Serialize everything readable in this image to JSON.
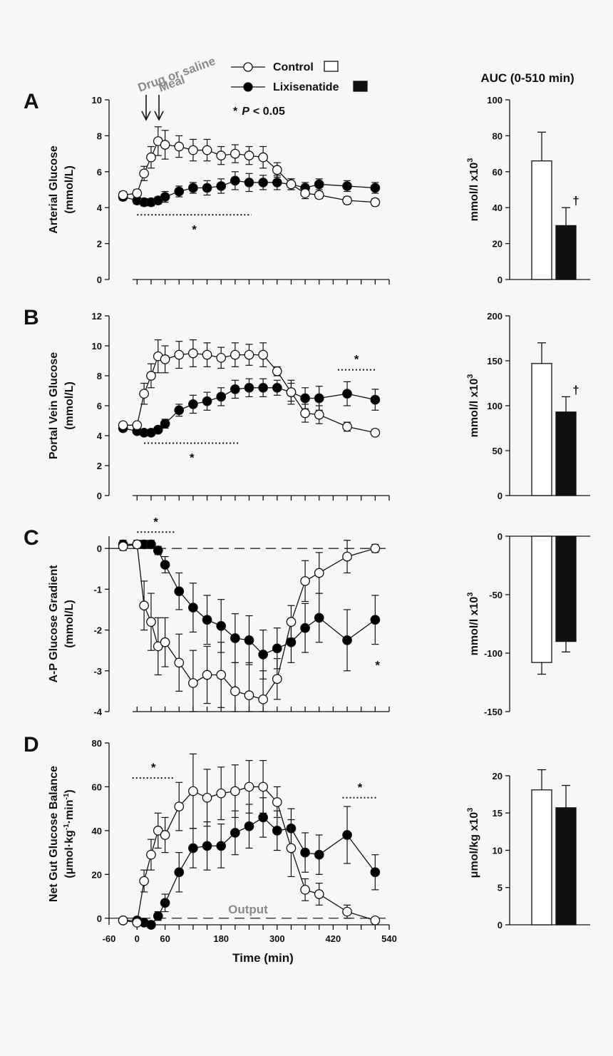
{
  "legend": {
    "control": "Control",
    "lixisenatide": "Lixisenatide",
    "star": "*",
    "p_label": "P",
    "p_value": "< 0.05"
  },
  "annotations": {
    "drug": "Drug or saline",
    "meal": "Meal"
  },
  "auc_title": "AUC (0-510 min)",
  "x_axis": {
    "label": "Time (min)",
    "ticks": [
      "-60",
      "0",
      "60",
      "180",
      "300",
      "420",
      "540"
    ],
    "tick_values": [
      -60,
      0,
      60,
      180,
      300,
      420,
      540
    ]
  },
  "chart_data": [
    {
      "panel": "A",
      "type": "line",
      "ylabel": [
        "Arterial Glucose",
        "(mmol/L)"
      ],
      "ylim": [
        0,
        10
      ],
      "yticks": [
        0,
        2,
        4,
        6,
        8,
        10
      ],
      "x": [
        -30,
        0,
        15,
        30,
        45,
        60,
        90,
        120,
        150,
        180,
        210,
        240,
        270,
        300,
        330,
        360,
        390,
        450,
        510
      ],
      "series": [
        {
          "name": "Control",
          "fill": "#ffffff",
          "values": [
            4.7,
            4.8,
            5.9,
            6.8,
            7.7,
            7.5,
            7.4,
            7.2,
            7.2,
            6.9,
            7.0,
            6.9,
            6.8,
            6.1,
            5.3,
            4.8,
            4.7,
            4.4,
            4.3
          ],
          "err": [
            0.2,
            0.2,
            0.4,
            0.6,
            0.8,
            0.8,
            0.6,
            0.6,
            0.6,
            0.5,
            0.5,
            0.5,
            0.6,
            0.4,
            0.3,
            0.3,
            0.2,
            0.2,
            0.2
          ]
        },
        {
          "name": "Lixisenatide",
          "fill": "#000000",
          "values": [
            4.6,
            4.4,
            4.3,
            4.3,
            4.4,
            4.6,
            4.9,
            5.1,
            5.1,
            5.2,
            5.5,
            5.4,
            5.4,
            5.4,
            5.3,
            5.1,
            5.3,
            5.2,
            5.1
          ],
          "err": [
            0.2,
            0.2,
            0.2,
            0.2,
            0.2,
            0.3,
            0.3,
            0.3,
            0.4,
            0.4,
            0.5,
            0.5,
            0.4,
            0.4,
            0.3,
            0.3,
            0.3,
            0.3,
            0.3
          ]
        }
      ],
      "sig": [
        {
          "x1": 0,
          "x2": 245,
          "y": 3.6,
          "label": "*",
          "label_pos": "below"
        }
      ],
      "auc": {
        "ylabel": "mmol/l x10",
        "ylabel_sup": "3",
        "ylim": [
          0,
          100
        ],
        "yticks": [
          0,
          20,
          40,
          60,
          80,
          100
        ],
        "values": [
          66,
          30
        ],
        "err": [
          16,
          10
        ],
        "marker": "†"
      }
    },
    {
      "panel": "B",
      "type": "line",
      "ylabel": [
        "Portal Vein Glucose",
        "(mmol/L)"
      ],
      "ylim": [
        0,
        12
      ],
      "yticks": [
        0,
        2,
        4,
        6,
        8,
        10,
        12
      ],
      "x": [
        -30,
        0,
        15,
        30,
        45,
        60,
        90,
        120,
        150,
        180,
        210,
        240,
        270,
        300,
        330,
        360,
        390,
        450,
        510
      ],
      "series": [
        {
          "name": "Control",
          "fill": "#ffffff",
          "values": [
            4.7,
            4.7,
            6.8,
            8.0,
            9.3,
            9.1,
            9.4,
            9.5,
            9.4,
            9.2,
            9.4,
            9.4,
            9.4,
            8.3,
            6.9,
            5.5,
            5.4,
            4.6,
            4.2
          ],
          "err": [
            0.2,
            0.2,
            0.7,
            0.8,
            1.1,
            0.9,
            0.9,
            0.9,
            0.8,
            0.7,
            0.8,
            0.7,
            0.8,
            0.3,
            0.6,
            0.6,
            0.6,
            0.3,
            0.2
          ]
        },
        {
          "name": "Lixisenatide",
          "fill": "#000000",
          "values": [
            4.5,
            4.3,
            4.2,
            4.2,
            4.4,
            4.8,
            5.7,
            6.1,
            6.3,
            6.6,
            7.1,
            7.2,
            7.2,
            7.2,
            6.9,
            6.5,
            6.5,
            6.8,
            6.4
          ],
          "err": [
            0.2,
            0.2,
            0.2,
            0.2,
            0.2,
            0.3,
            0.4,
            0.6,
            0.6,
            0.6,
            0.6,
            0.6,
            0.6,
            0.5,
            0.8,
            0.7,
            0.8,
            0.8,
            0.7
          ]
        }
      ],
      "sig": [
        {
          "x1": 15,
          "x2": 220,
          "y": 3.5,
          "label": "*",
          "label_pos": "below"
        },
        {
          "x1": 430,
          "x2": 510,
          "y": 8.4,
          "label": "*",
          "label_pos": "above"
        }
      ],
      "auc": {
        "ylabel": "mmol/l x10",
        "ylabel_sup": "3",
        "ylim": [
          0,
          200
        ],
        "yticks": [
          0,
          50,
          100,
          150,
          200
        ],
        "values": [
          147,
          93
        ],
        "err": [
          23,
          17
        ],
        "marker": "†"
      }
    },
    {
      "panel": "C",
      "type": "line",
      "ylabel": [
        "A-P Glucose Gradient",
        "(mmol/L)"
      ],
      "ylim": [
        -4,
        0.3
      ],
      "yticks": [
        -4,
        -3,
        -2,
        -1,
        0
      ],
      "zero_line": true,
      "x": [
        -30,
        0,
        15,
        30,
        45,
        60,
        90,
        120,
        150,
        180,
        210,
        240,
        270,
        300,
        330,
        360,
        390,
        450,
        510
      ],
      "series": [
        {
          "name": "Control",
          "fill": "#ffffff",
          "values": [
            0.05,
            0.1,
            -1.4,
            -1.8,
            -2.4,
            -2.3,
            -2.8,
            -3.3,
            -3.1,
            -3.1,
            -3.5,
            -3.6,
            -3.7,
            -3.2,
            -1.8,
            -0.8,
            -0.6,
            -0.2,
            0.0
          ],
          "err": [
            0.1,
            0.1,
            0.6,
            0.7,
            0.7,
            0.6,
            0.7,
            0.8,
            0.7,
            0.8,
            0.7,
            0.8,
            0.7,
            0.5,
            0.4,
            0.5,
            0.5,
            0.4,
            0.1
          ]
        },
        {
          "name": "Lixisenatide",
          "fill": "#000000",
          "values": [
            0.1,
            0.1,
            0.1,
            0.1,
            -0.05,
            -0.4,
            -1.05,
            -1.45,
            -1.75,
            -1.9,
            -2.2,
            -2.25,
            -2.6,
            -2.45,
            -2.3,
            -1.95,
            -1.7,
            -2.25,
            -1.75
          ],
          "err": [
            0.1,
            0.1,
            0.1,
            0.1,
            0.1,
            0.2,
            0.45,
            0.6,
            0.6,
            0.65,
            0.6,
            0.6,
            0.6,
            0.5,
            0.5,
            0.6,
            0.6,
            0.75,
            0.6
          ]
        }
      ],
      "sig": [
        {
          "x1": 0,
          "x2": 80,
          "y": 0.4,
          "label": "*",
          "label_pos": "above"
        }
      ],
      "extra_star": {
        "x": 515,
        "y": -2.75,
        "label": "*"
      },
      "auc": {
        "ylabel": "mmol/l x10",
        "ylabel_sup": "3",
        "ylim": [
          -150,
          0
        ],
        "yticks": [
          -150,
          -100,
          -50,
          0
        ],
        "values": [
          -108,
          -90
        ],
        "err": [
          10,
          9
        ],
        "marker": ""
      }
    },
    {
      "panel": "D",
      "type": "line",
      "ylabel": [
        "Net Gut Glucose Balance",
        "(μmol·kg-1·min-1)"
      ],
      "ylim": [
        -3,
        80
      ],
      "yticks": [
        0,
        20,
        40,
        60,
        80
      ],
      "zero_line": true,
      "zero_note": "Output",
      "x": [
        -30,
        0,
        15,
        30,
        45,
        60,
        90,
        120,
        150,
        180,
        210,
        240,
        270,
        300,
        330,
        360,
        390,
        450,
        510
      ],
      "series": [
        {
          "name": "Control",
          "fill": "#ffffff",
          "values": [
            -1,
            -2,
            17,
            29,
            40,
            38,
            51,
            58,
            55,
            57,
            58,
            60,
            60,
            53,
            32,
            13,
            11,
            3,
            -1
          ],
          "err": [
            1,
            1,
            5,
            7,
            8,
            8,
            11,
            17,
            13,
            12,
            12,
            12,
            12,
            7,
            13,
            5,
            5,
            3,
            1
          ]
        },
        {
          "name": "Lixisenatide",
          "fill": "#000000",
          "values": [
            -1,
            -1,
            -2,
            -3,
            1,
            7,
            21,
            32,
            33,
            33,
            39,
            42,
            46,
            40,
            41,
            30,
            29,
            38,
            21
          ],
          "err": [
            1,
            1,
            1,
            1,
            2,
            4,
            9,
            9,
            11,
            10,
            10,
            10,
            9,
            9,
            9,
            9,
            9,
            13,
            8
          ]
        }
      ],
      "sig": [
        {
          "x1": -10,
          "x2": 80,
          "y": 64,
          "label": "*",
          "label_pos": "above"
        },
        {
          "x1": 440,
          "x2": 515,
          "y": 55,
          "label": "*",
          "label_pos": "above"
        }
      ],
      "auc": {
        "ylabel": "μmol/kg x10",
        "ylabel_sup": "3",
        "ylim": [
          0,
          22
        ],
        "yticks": [
          0,
          5,
          10,
          15,
          20
        ],
        "values": [
          18.1,
          15.7
        ],
        "err": [
          2.7,
          3.0
        ],
        "marker": ""
      }
    }
  ]
}
